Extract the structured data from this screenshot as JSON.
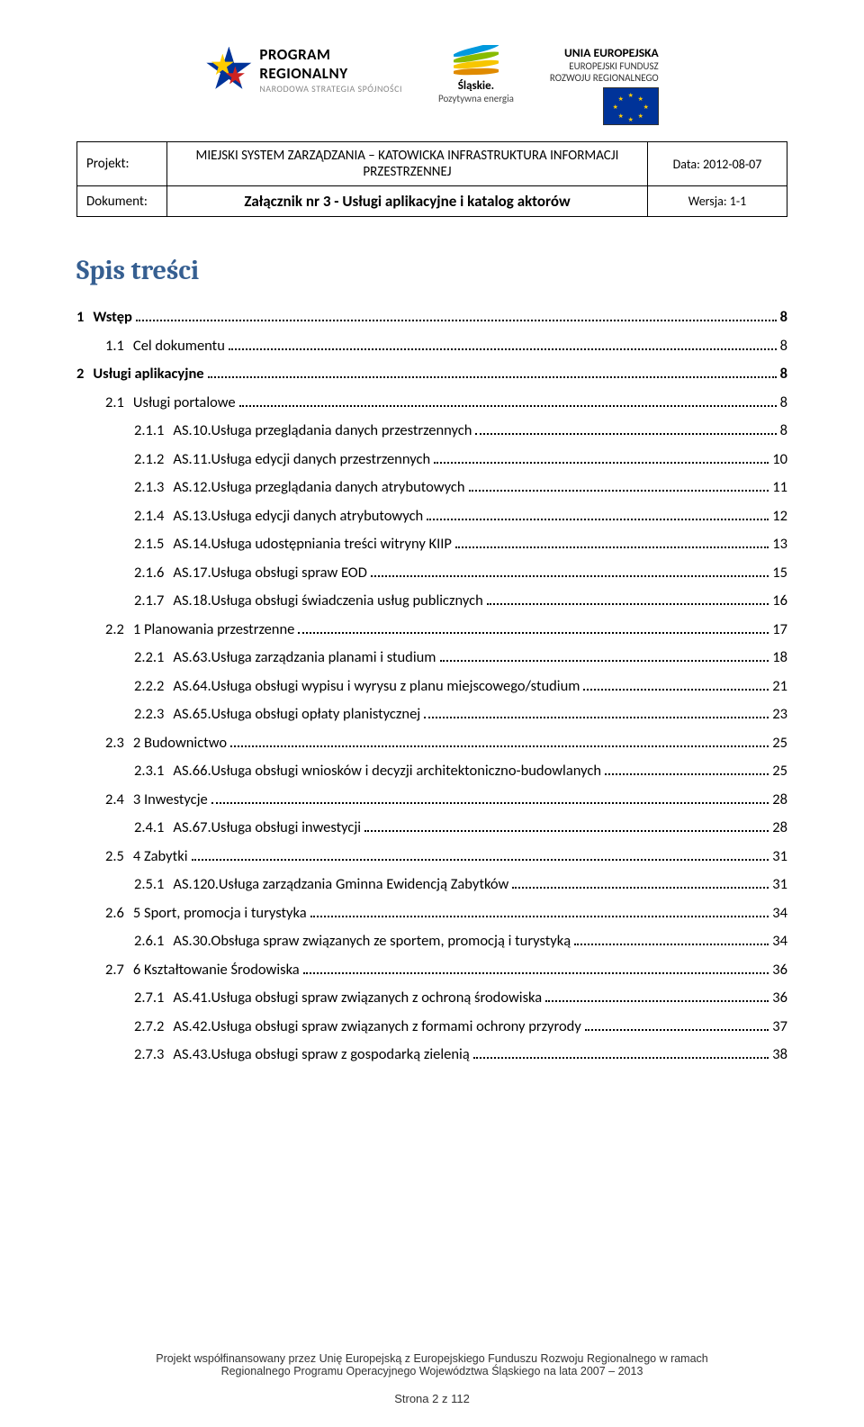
{
  "logos": {
    "regional": {
      "line1": "PROGRAM",
      "line2": "REGIONALNY",
      "line3": "NARODOWA STRATEGIA SPÓJNOŚCI"
    },
    "slaskie": {
      "line1": "Śląskie.",
      "line2": "Pozytywna energia",
      "stripes": [
        "#0099dd",
        "#88bb00",
        "#f7c600",
        "#e08b00"
      ]
    },
    "eu": {
      "line1": "UNIA EUROPEJSKA",
      "line2": "EUROPEJSKI FUNDUSZ",
      "line3": "ROZWOJU REGIONALNEGO",
      "flag_bg": "#003399",
      "star_color": "#ffcc00"
    }
  },
  "header": {
    "projekt_label": "Projekt:",
    "projekt_title": "MIEJSKI SYSTEM ZARZĄDZANIA – KATOWICKA INFRASTRUKTURA INFORMACJI PRZESTRZENNEJ",
    "data_label": "Data:",
    "data_value": "2012-08-07",
    "dokument_label": "Dokument:",
    "dokument_title": "Załącznik nr 3 - Usługi aplikacyjne i katalog aktorów",
    "wersja_label": "Wersja:",
    "wersja_value": "1-1"
  },
  "toc_title": "Spis treści",
  "toc": [
    {
      "lvl": 1,
      "num": "1",
      "label": "Wstęp",
      "page": "8"
    },
    {
      "lvl": 2,
      "num": "1.1",
      "label": "Cel dokumentu",
      "page": "8"
    },
    {
      "lvl": 1,
      "num": "2",
      "label": "Usługi aplikacyjne",
      "page": "8"
    },
    {
      "lvl": 2,
      "num": "2.1",
      "label": "Usługi portalowe",
      "page": "8"
    },
    {
      "lvl": 3,
      "num": "2.1.1",
      "label": "AS.10.Usługa przeglądania danych przestrzennych",
      "page": "8"
    },
    {
      "lvl": 3,
      "num": "2.1.2",
      "label": "AS.11.Usługa edycji danych przestrzennych",
      "page": "10"
    },
    {
      "lvl": 3,
      "num": "2.1.3",
      "label": "AS.12.Usługa przeglądania danych atrybutowych",
      "page": "11"
    },
    {
      "lvl": 3,
      "num": "2.1.4",
      "label": "AS.13.Usługa edycji danych atrybutowych",
      "page": "12"
    },
    {
      "lvl": 3,
      "num": "2.1.5",
      "label": "AS.14.Usługa udostępniania treści witryny KIIP",
      "page": "13"
    },
    {
      "lvl": 3,
      "num": "2.1.6",
      "label": "AS.17.Usługa obsługi spraw EOD",
      "page": "15"
    },
    {
      "lvl": 3,
      "num": "2.1.7",
      "label": "AS.18.Usługa obsługi świadczenia usług publicznych",
      "page": "16"
    },
    {
      "lvl": 2,
      "num": "2.2",
      "label": "1 Planowania przestrzenne",
      "page": "17"
    },
    {
      "lvl": 3,
      "num": "2.2.1",
      "label": "AS.63.Usługa zarządzania planami i studium",
      "page": "18"
    },
    {
      "lvl": 3,
      "num": "2.2.2",
      "label": "AS.64.Usługa obsługi wypisu i wyrysu z planu miejscowego/studium",
      "page": "21"
    },
    {
      "lvl": 3,
      "num": "2.2.3",
      "label": "AS.65.Usługa obsługi opłaty planistycznej",
      "page": "23"
    },
    {
      "lvl": 2,
      "num": "2.3",
      "label": "2 Budownictwo",
      "page": "25"
    },
    {
      "lvl": 3,
      "num": "2.3.1",
      "label": "AS.66.Usługa obsługi wniosków i decyzji architektoniczno-budowlanych",
      "page": "25"
    },
    {
      "lvl": 2,
      "num": "2.4",
      "label": "3 Inwestycje",
      "page": "28"
    },
    {
      "lvl": 3,
      "num": "2.4.1",
      "label": "AS.67.Usługa obsługi inwestycji",
      "page": "28"
    },
    {
      "lvl": 2,
      "num": "2.5",
      "label": "4 Zabytki",
      "page": "31"
    },
    {
      "lvl": 3,
      "num": "2.5.1",
      "label": "AS.120.Usługa zarządzania Gminna Ewidencją Zabytków",
      "page": "31"
    },
    {
      "lvl": 2,
      "num": "2.6",
      "label": "5 Sport, promocja i turystyka",
      "page": "34"
    },
    {
      "lvl": 3,
      "num": "2.6.1",
      "label": "AS.30.Obsługa spraw związanych ze sportem, promocją i turystyką",
      "page": "34"
    },
    {
      "lvl": 2,
      "num": "2.7",
      "label": "6 Kształtowanie Środowiska",
      "page": "36"
    },
    {
      "lvl": 3,
      "num": "2.7.1",
      "label": "AS.41.Usługa obsługi spraw związanych z ochroną środowiska",
      "page": "36"
    },
    {
      "lvl": 3,
      "num": "2.7.2",
      "label": "AS.42.Usługa obsługi spraw związanych z formami ochrony przyrody",
      "page": "37"
    },
    {
      "lvl": 3,
      "num": "2.7.3",
      "label": "AS.43.Usługa obsługi spraw z gospodarką zielenią",
      "page": "38"
    }
  ],
  "footer": {
    "line1": "Projekt współfinansowany przez Unię Europejską z Europejskiego Funduszu Rozwoju Regionalnego w ramach",
    "line2": "Regionalnego Programu Operacyjnego Województwa Śląskiego na lata 2007 – 2013",
    "page_label": "Strona 2 z 112"
  },
  "colors": {
    "heading": "#365f91",
    "text": "#000000",
    "background": "#ffffff"
  }
}
